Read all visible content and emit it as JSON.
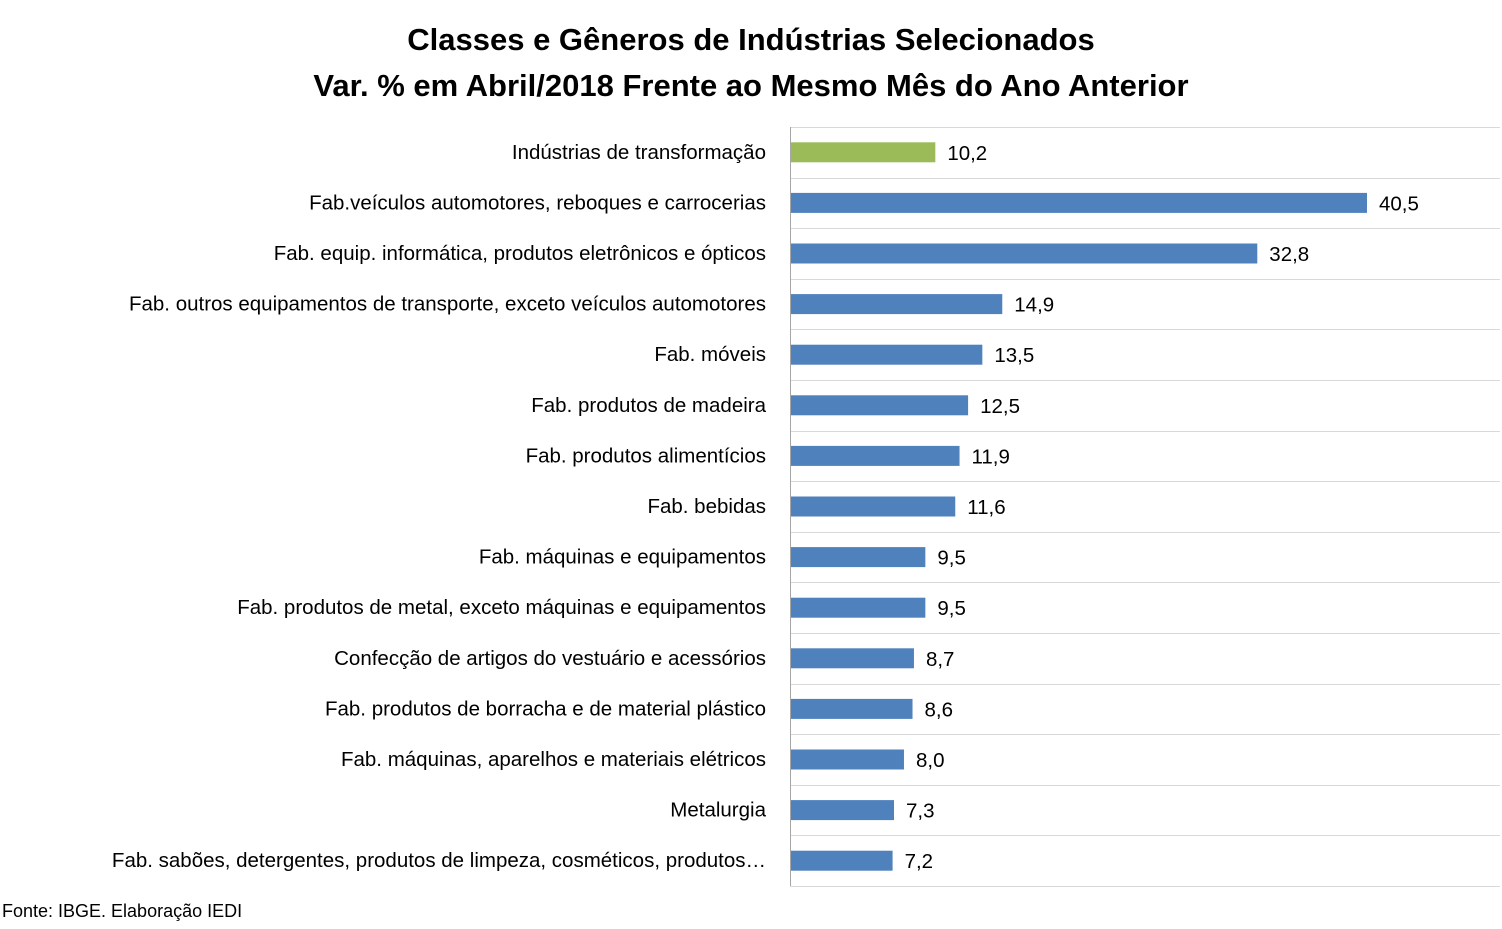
{
  "chart_data": {
    "type": "bar",
    "orientation": "horizontal",
    "title_line1": "Classes e Gêneros de Indústrias Selecionados",
    "title_line2": "Var. % em Abril/2018 Frente ao Mesmo Mês do Ano Anterior",
    "categories": [
      "Indústrias de transformação",
      "Fab.veículos automotores, reboques e carrocerias",
      "Fab. equip. informática, produtos eletrônicos e ópticos",
      "Fab. outros equipamentos de transporte, exceto veículos automotores",
      "Fab. móveis",
      "Fab. produtos de madeira",
      "Fab. produtos alimentícios",
      "Fab. bebidas",
      "Fab. máquinas e equipamentos",
      "Fab. produtos de metal, exceto máquinas e equipamentos",
      "Confecção de artigos do vestuário e acessórios",
      "Fab. produtos de borracha e de material plástico",
      "Fab. máquinas, aparelhos e materiais elétricos",
      "Metalurgia",
      "Fab. sabões, detergentes, produtos de limpeza, cosméticos, produtos…"
    ],
    "values": [
      10.2,
      40.5,
      32.8,
      14.9,
      13.5,
      12.5,
      11.9,
      11.6,
      9.5,
      9.5,
      8.7,
      8.6,
      8.0,
      7.3,
      7.2
    ],
    "value_labels": [
      "10,2",
      "40,5",
      "32,8",
      "14,9",
      "13,5",
      "12,5",
      "11,9",
      "11,6",
      "9,5",
      "9,5",
      "8,7",
      "8,6",
      "8,0",
      "7,3",
      "7,2"
    ],
    "bar_colors": [
      "#9bbb59",
      "#4f81bd",
      "#4f81bd",
      "#4f81bd",
      "#4f81bd",
      "#4f81bd",
      "#4f81bd",
      "#4f81bd",
      "#4f81bd",
      "#4f81bd",
      "#4f81bd",
      "#4f81bd",
      "#4f81bd",
      "#4f81bd",
      "#4f81bd"
    ],
    "xlim": [
      0,
      50
    ],
    "grid": "horizontal-category-separators",
    "legend": "none"
  },
  "source": "Fonte: IBGE. Elaboração IEDI"
}
